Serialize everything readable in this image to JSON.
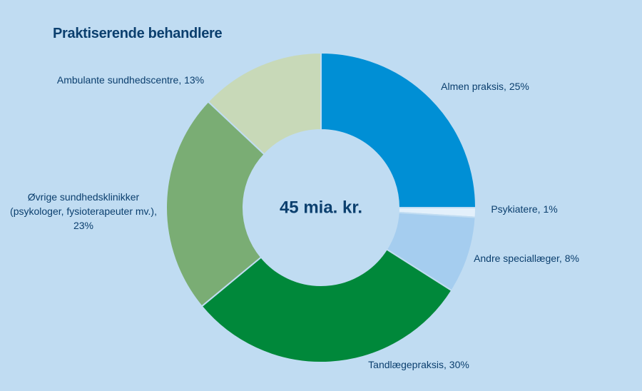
{
  "chart_data": {
    "type": "pie",
    "title": "Praktiserende behandlere",
    "center_label": "45 mia. kr.",
    "slices": [
      {
        "label": "Almen praksis, 25%",
        "value": 25,
        "color": "#008fd5"
      },
      {
        "label": "Psykiatere, 1%",
        "value": 1,
        "color": "#e3f0fb"
      },
      {
        "label": "Andre speciallæger, 8%",
        "value": 8,
        "color": "#a5cdef"
      },
      {
        "label": "Tandlægepraksis, 30%",
        "value": 30,
        "color": "#00883a"
      },
      {
        "label": "Øvrige sundhedsklinikker (psykologer, fysioterapeuter mv.), 23%",
        "value": 23,
        "color": "#7aad74",
        "label_lines": [
          "Øvrige sundhedsklinikker",
          "(psykologer, fysioterapeuter mv.),",
          "23%"
        ]
      },
      {
        "label": "Ambulante sundhedscentre, 13%",
        "value": 13,
        "color": "#c8d9b8"
      }
    ]
  }
}
